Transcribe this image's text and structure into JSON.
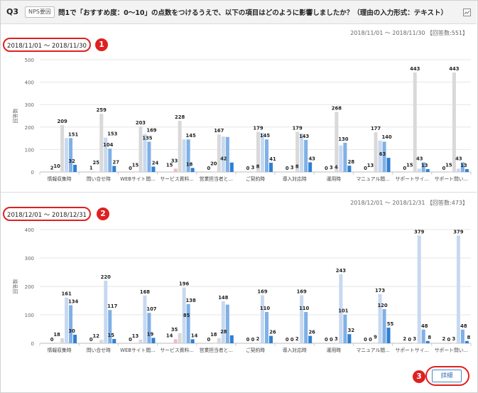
{
  "header": {
    "question_no": "Q3",
    "tag": "NPS要因",
    "title": "問1で「おすすめ度：0〜10」の点数をつけるうえで、以下の項目はどのように影響しましたか？（理由の入力形式：テキスト）"
  },
  "periods": [
    {
      "label": "2018/11/01 ～ 2018/11/30",
      "summary": "2018/11/01 ～ 2018/11/30 【回答数:551】",
      "badge": "1"
    },
    {
      "label": "2018/12/01 ～ 2018/12/31",
      "summary": "2018/12/01 ～ 2018/12/31 【回答数:473】",
      "badge": "2"
    }
  ],
  "detail": {
    "label": "詳細",
    "badge": "3"
  },
  "colors": [
    "#f2b8c6",
    "#d9d9d9",
    "#c7d9f0",
    "#7fb0e6",
    "#2e7fd3"
  ],
  "chart_data": [
    {
      "type": "bar",
      "ylabel": "回答数",
      "ylim": [
        0,
        500
      ],
      "yticks": [
        0,
        100,
        200,
        300,
        400,
        500
      ],
      "categories": [
        "情報収集時",
        "問い合せ時",
        "WEBサイト閲...",
        "サービス資料...",
        "営業担当者と...",
        "ご契約時",
        "導入対応時",
        "運用時",
        "マニュアル閲...",
        "サポートサイ...",
        "サポート問い..."
      ],
      "series": [
        {
          "values": [
            2,
            1,
            0,
            15,
            0,
            0,
            0,
            0,
            0,
            0,
            0
          ]
        },
        {
          "values": [
            209,
            259,
            203,
            228,
            167,
            179,
            179,
            268,
            177,
            443,
            443
          ]
        },
        {
          "values": [
            151,
            153,
            169,
            145,
            158,
            175,
            172,
            118,
            140,
            15,
            15
          ]
        },
        {
          "values": [
            151,
            104,
            135,
            145,
            156,
            145,
            143,
            130,
            135,
            43,
            43
          ]
        },
        {
          "values": [
            32,
            27,
            24,
            18,
            42,
            41,
            43,
            28,
            63,
            13,
            13
          ]
        }
      ],
      "data_labels": [
        [
          "2",
          "10",
          "209",
          "151",
          "32"
        ],
        [
          "1",
          "25",
          "259",
          "153",
          "104",
          "27"
        ],
        [
          "0",
          "15",
          "203",
          "169",
          "135",
          "24"
        ],
        [
          "15",
          "33",
          "228",
          "145",
          "18"
        ],
        [
          "0",
          "20",
          "167",
          "42"
        ],
        [
          "0",
          "3",
          "8",
          "179",
          "145",
          "41"
        ],
        [
          "0",
          "3",
          "8",
          "179",
          "143",
          "43"
        ],
        [
          "0",
          "3",
          "4",
          "268",
          "130",
          "28"
        ],
        [
          "0",
          "13",
          "177",
          "140",
          "63"
        ],
        [
          "0",
          "15",
          "443",
          "43",
          "13"
        ],
        [
          "0",
          "15",
          "443",
          "43",
          "13"
        ]
      ]
    },
    {
      "type": "bar",
      "ylabel": "回答数",
      "ylim": [
        0,
        400
      ],
      "yticks": [
        0,
        100,
        200,
        300,
        400
      ],
      "categories": [
        "情報収集時",
        "問い合せ時",
        "WEBサイト閲...",
        "サービス資料...",
        "営業担当者と...",
        "ご契約時",
        "導入対応時",
        "運用時",
        "マニュアル閲...",
        "サポートサイ...",
        "サポート問い..."
      ],
      "series": [
        {
          "values": [
            0,
            0,
            0,
            14,
            0,
            0,
            0,
            0,
            0,
            2,
            2
          ]
        },
        {
          "values": [
            18,
            12,
            13,
            35,
            18,
            0,
            0,
            0,
            0,
            0,
            0
          ]
        },
        {
          "values": [
            161,
            220,
            168,
            196,
            148,
            169,
            169,
            243,
            173,
            379,
            379
          ]
        },
        {
          "values": [
            134,
            117,
            107,
            138,
            136,
            110,
            110,
            101,
            120,
            48,
            48
          ]
        },
        {
          "values": [
            30,
            15,
            19,
            14,
            28,
            26,
            26,
            32,
            55,
            8,
            8
          ]
        }
      ],
      "data_labels": [
        [
          "0",
          "18",
          "161",
          "134",
          "30"
        ],
        [
          "0",
          "12",
          "220",
          "117",
          "15"
        ],
        [
          "0",
          "13",
          "168",
          "107",
          "19"
        ],
        [
          "14",
          "35",
          "196",
          "138",
          "85",
          "14"
        ],
        [
          "0",
          "18",
          "148",
          "28"
        ],
        [
          "0",
          "0",
          "2",
          "169",
          "110",
          "26"
        ],
        [
          "0",
          "0",
          "2",
          "169",
          "110",
          "26"
        ],
        [
          "0",
          "0",
          "3",
          "243",
          "101",
          "32"
        ],
        [
          "0",
          "0",
          "9",
          "173",
          "120",
          "55"
        ],
        [
          "2",
          "0",
          "3",
          "379",
          "48",
          "8"
        ],
        [
          "2",
          "0",
          "3",
          "379",
          "48",
          "8"
        ]
      ]
    }
  ]
}
